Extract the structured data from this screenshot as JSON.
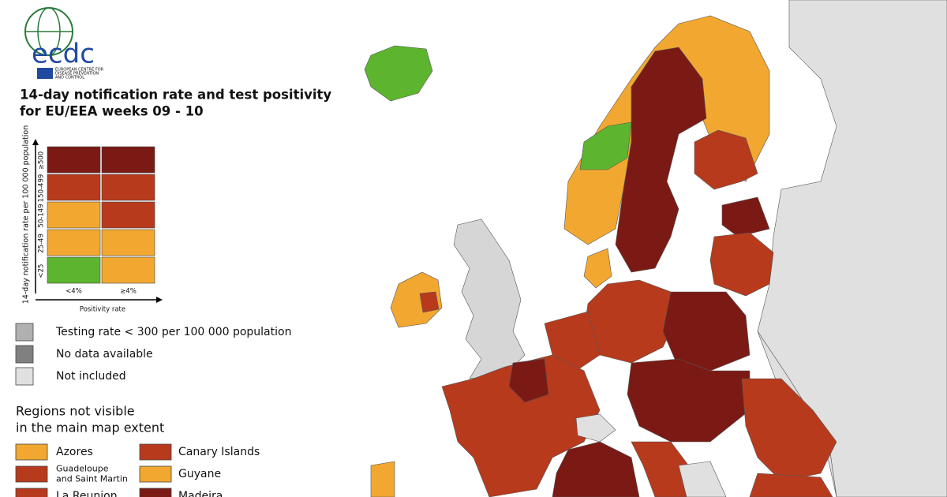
{
  "header": {
    "logo_text": "ecdc",
    "logo_subtitle": [
      "EUROPEAN CENTRE FOR",
      "DISEASE PREVENTION",
      "AND CONTROL"
    ],
    "title": [
      "14-day notification rate and test positivity",
      "for EU/EEA weeks 09 - 10"
    ]
  },
  "matrix": {
    "y_axis_label": "14-day notification rate per 100 000 population",
    "x_axis_label": "Positivity rate",
    "columns": [
      "<4%",
      "≥4%"
    ],
    "rows": [
      {
        "label": "≥500",
        "colors": [
          "#7b1a14",
          "#7b1a14"
        ]
      },
      {
        "label": "150-499",
        "colors": [
          "#b83a1c",
          "#b83a1c"
        ]
      },
      {
        "label": "50-149",
        "colors": [
          "#f2a830",
          "#b83a1c"
        ]
      },
      {
        "label": "25-49",
        "colors": [
          "#f2a830",
          "#f2a830"
        ]
      },
      {
        "label": "<25",
        "colors": [
          "#5db52f",
          "#f2a830"
        ]
      }
    ]
  },
  "legend": [
    {
      "label": "Testing rate < 300 per 100 000 population",
      "color": "#b0b0b0"
    },
    {
      "label": "No data available",
      "color": "#808080"
    },
    {
      "label": "Not included",
      "color": "#e0e0e0"
    }
  ],
  "regions": {
    "title": [
      "Regions not visible",
      "in the main map extent"
    ],
    "items": [
      {
        "name": [
          "Azores"
        ],
        "color": "#f2a830"
      },
      {
        "name": [
          "Canary Islands"
        ],
        "color": "#b83a1c"
      },
      {
        "name": [
          "Guadeloupe",
          "and Saint Martin"
        ],
        "color": "#b83a1c"
      },
      {
        "name": [
          "Guyane"
        ],
        "color": "#f2a830"
      },
      {
        "name": [
          "La Reunion"
        ],
        "color": "#b83a1c"
      },
      {
        "name": [
          "Madeira"
        ],
        "color": "#7b1a14"
      }
    ]
  }
}
